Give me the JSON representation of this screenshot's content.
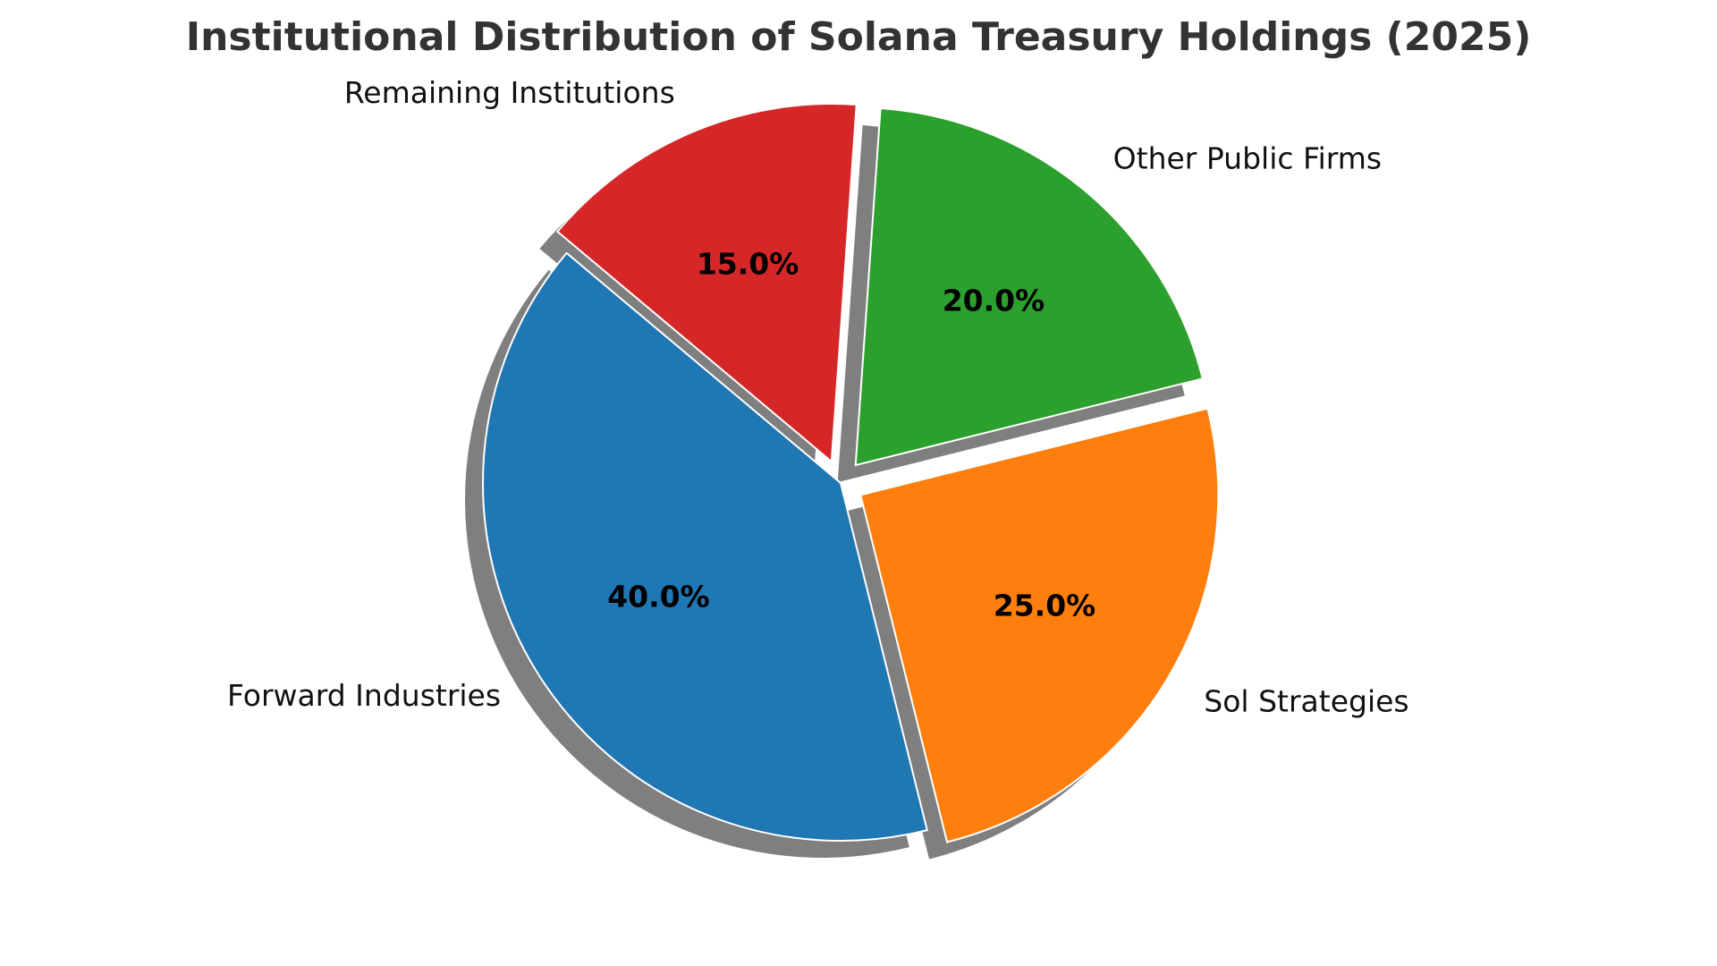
{
  "chart_data": {
    "type": "pie",
    "title": "Institutional Distribution of Solana Treasury Holdings (2025)",
    "slices": [
      {
        "label": "Forward Industries",
        "value": 40.0,
        "pct_label": "40.0%",
        "color": "#1f77b4",
        "exploded": false
      },
      {
        "label": "Sol Strategies",
        "value": 25.0,
        "pct_label": "25.0%",
        "color": "#ff7f0e",
        "exploded": true
      },
      {
        "label": "Other Public Firms",
        "value": 20.0,
        "pct_label": "20.0%",
        "color": "#2ca02c",
        "exploded": true
      },
      {
        "label": "Remaining Institutions",
        "value": 15.0,
        "pct_label": "15.0%",
        "color": "#d62728",
        "exploded": true
      }
    ],
    "start_angle_deg": 140,
    "direction": "counterclockwise",
    "shadow": true,
    "legend": "none"
  }
}
